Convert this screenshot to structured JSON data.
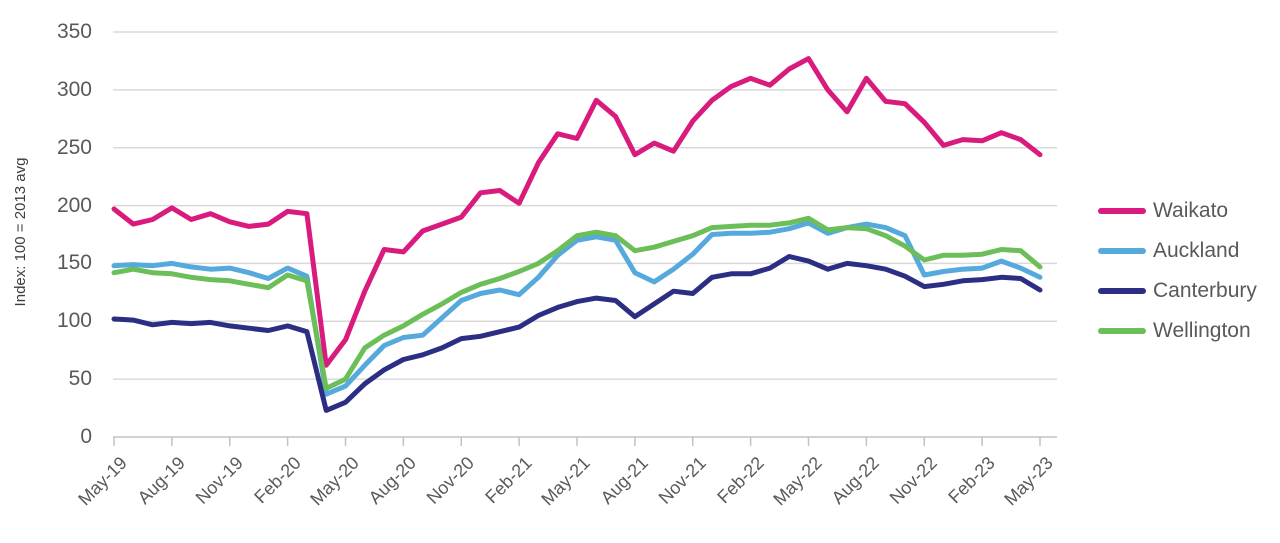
{
  "chart_data": {
    "type": "line",
    "title": "",
    "y_axis_label": "Index: 100 = 2013 avg",
    "ylim": [
      0,
      350
    ],
    "y_tick_step": 50,
    "y_ticks_top_to_bottom": [
      "350",
      "300",
      "250",
      "200",
      "150",
      "100",
      "50",
      "0"
    ],
    "x_tick_every": 3,
    "x_tick_labels": [
      "May-19",
      "Aug-19",
      "Nov-19",
      "Feb-20",
      "May-20",
      "Aug-20",
      "Nov-20",
      "Feb-21",
      "May-21",
      "Aug-21",
      "Nov-21",
      "Feb-22",
      "May-22",
      "Aug-22",
      "Nov-22",
      "Feb-23",
      "May-23"
    ],
    "x_categories": [
      "May-19",
      "Jun-19",
      "Jul-19",
      "Aug-19",
      "Sep-19",
      "Oct-19",
      "Nov-19",
      "Dec-19",
      "Jan-20",
      "Feb-20",
      "Mar-20",
      "Apr-20",
      "May-20",
      "Jun-20",
      "Jul-20",
      "Aug-20",
      "Sep-20",
      "Oct-20",
      "Nov-20",
      "Dec-20",
      "Jan-21",
      "Feb-21",
      "Mar-21",
      "Apr-21",
      "May-21",
      "Jun-21",
      "Jul-21",
      "Aug-21",
      "Sep-21",
      "Oct-21",
      "Nov-21",
      "Dec-21",
      "Jan-22",
      "Feb-22",
      "Mar-22",
      "Apr-22",
      "May-22",
      "Jun-22",
      "Jul-22",
      "Aug-22",
      "Sep-22",
      "Oct-22",
      "Nov-22",
      "Dec-22",
      "Jan-23",
      "Feb-23",
      "Mar-23",
      "Apr-23",
      "May-23"
    ],
    "grid": "horizontal",
    "legend_position": "right",
    "grid_color": "#d9d9d9",
    "axis_color": "#c2c2c2",
    "tick_label_color": "#595959",
    "axis_title_color": "#3d3d3d",
    "legend_text_color": "#595959",
    "series": [
      {
        "name": "Waikato",
        "color": "#d81b7d",
        "values": [
          197,
          184,
          188,
          198,
          188,
          193,
          186,
          182,
          184,
          195,
          193,
          62,
          84,
          126,
          162,
          160,
          178,
          184,
          190,
          211,
          213,
          202,
          237,
          262,
          258,
          291,
          277,
          244,
          254,
          247,
          273,
          291,
          303,
          310,
          304,
          318,
          327,
          300,
          281,
          310,
          290,
          288,
          272,
          252,
          257,
          256,
          263,
          257,
          244
        ]
      },
      {
        "name": "Auckland",
        "color": "#55a9dc",
        "values": [
          148,
          149,
          148,
          150,
          147,
          145,
          146,
          142,
          137,
          146,
          139,
          37,
          44,
          62,
          79,
          86,
          88,
          103,
          118,
          124,
          127,
          123,
          138,
          157,
          170,
          173,
          170,
          142,
          134,
          145,
          158,
          175,
          176,
          176,
          177,
          180,
          185,
          176,
          181,
          184,
          181,
          174,
          140,
          143,
          145,
          146,
          152,
          146,
          138
        ]
      },
      {
        "name": "Canterbury",
        "color": "#2b2e83",
        "values": [
          102,
          101,
          97,
          99,
          98,
          99,
          96,
          94,
          92,
          96,
          91,
          23,
          30,
          46,
          58,
          67,
          71,
          77,
          85,
          87,
          91,
          95,
          105,
          112,
          117,
          120,
          118,
          104,
          115,
          126,
          124,
          138,
          141,
          141,
          146,
          156,
          152,
          145,
          150,
          148,
          145,
          139,
          130,
          132,
          135,
          136,
          138,
          137,
          127
        ]
      },
      {
        "name": "Wellington",
        "color": "#6cbe59",
        "values": [
          142,
          145,
          142,
          141,
          138,
          136,
          135,
          132,
          129,
          140,
          135,
          42,
          50,
          77,
          88,
          96,
          106,
          115,
          125,
          132,
          137,
          143,
          150,
          161,
          174,
          177,
          174,
          161,
          164,
          169,
          174,
          181,
          182,
          183,
          183,
          185,
          189,
          179,
          181,
          180,
          174,
          165,
          153,
          157,
          157,
          158,
          162,
          161,
          147
        ]
      }
    ]
  }
}
